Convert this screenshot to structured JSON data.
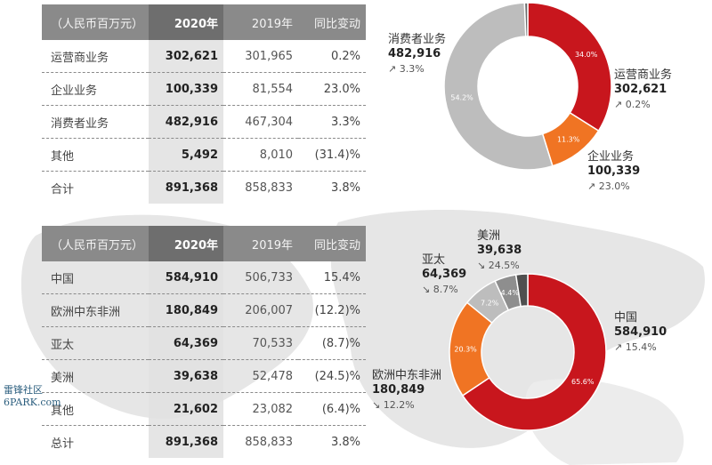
{
  "table_business": {
    "headers": [
      "（人民币百万元）",
      "2020年",
      "2019年",
      "同比变动"
    ],
    "rows": [
      [
        "运营商业务",
        "302,621",
        "301,965",
        "0.2%"
      ],
      [
        "企业业务",
        "100,339",
        "81,554",
        "23.0%"
      ],
      [
        "消费者业务",
        "482,916",
        "467,304",
        "3.3%"
      ],
      [
        "其他",
        "5,492",
        "8,010",
        "(31.4)%"
      ],
      [
        "合计",
        "891,368",
        "858,833",
        "3.8%"
      ]
    ]
  },
  "table_region": {
    "headers": [
      "（人民币百万元）",
      "2020年",
      "2019年",
      "同比变动"
    ],
    "rows": [
      [
        "中国",
        "584,910",
        "506,733",
        "15.4%"
      ],
      [
        "欧洲中东非洲",
        "180,849",
        "206,007",
        "(12.2)%"
      ],
      [
        "亚太",
        "64,369",
        "70,533",
        "(8.7)%"
      ],
      [
        "美洲",
        "39,638",
        "52,478",
        "(24.5)%"
      ],
      [
        "其他",
        "21,602",
        "23,082",
        "(6.4)%"
      ],
      [
        "总计",
        "891,368",
        "858,833",
        "3.8%"
      ]
    ]
  },
  "chart_data": [
    {
      "type": "pie",
      "donut": true,
      "slices": [
        {
          "label": "运营商业务",
          "value": 302621,
          "pct": 34.0,
          "pct_label": "34.0%",
          "value_label": "302,621",
          "change": "0.2%",
          "direction": "up",
          "color": "#c8161d"
        },
        {
          "label": "企业业务",
          "value": 100339,
          "pct": 11.3,
          "pct_label": "11.3%",
          "value_label": "100,339",
          "change": "23.0%",
          "direction": "up",
          "color": "#f07423"
        },
        {
          "label": "消费者业务",
          "value": 482916,
          "pct": 54.2,
          "pct_label": "54.2%",
          "value_label": "482,916",
          "change": "3.3%",
          "direction": "up",
          "color": "#bdbdbd"
        },
        {
          "label": "其他",
          "value": 5492,
          "pct": 0.6,
          "color": "#6b6b6b"
        }
      ]
    },
    {
      "type": "pie",
      "donut": true,
      "slices": [
        {
          "label": "中国",
          "value": 584910,
          "pct": 65.6,
          "pct_label": "65.6%",
          "value_label": "584,910",
          "change": "15.4%",
          "direction": "up",
          "color": "#c8161d"
        },
        {
          "label": "欧洲中东非洲",
          "value": 180849,
          "pct": 20.3,
          "pct_label": "20.3%",
          "value_label": "180,849",
          "change": "12.2%",
          "direction": "down",
          "color": "#f07423"
        },
        {
          "label": "亚太",
          "value": 64369,
          "pct": 7.2,
          "pct_label": "7.2%",
          "value_label": "64,369",
          "change": "8.7%",
          "direction": "down",
          "color": "#bdbdbd"
        },
        {
          "label": "美洲",
          "value": 39638,
          "pct": 4.4,
          "pct_label": "4.4%",
          "value_label": "39,638",
          "change": "24.5%",
          "direction": "down",
          "color": "#8e8e8e"
        },
        {
          "label": "其他",
          "value": 21602,
          "pct": 2.4,
          "color": "#4f4f4f"
        }
      ]
    }
  ],
  "watermark": {
    "line1": "雷锋社区",
    "line2": "6PARK.com"
  },
  "glyphs": {
    "up": "↗",
    "down": "↘"
  }
}
